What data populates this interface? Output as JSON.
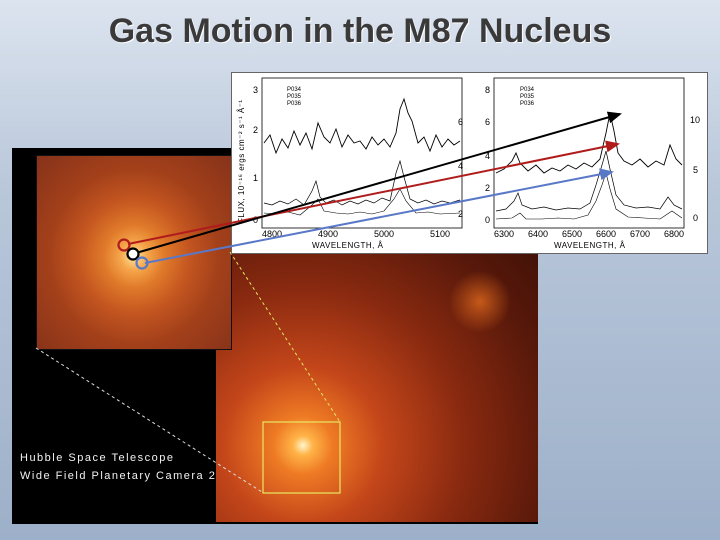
{
  "slide": {
    "title": "Gas Motion in the M87 Nucleus"
  },
  "image_panel": {
    "label_line1": "Hubble Space Telescope",
    "label_line2": "Wide Field Planetary Camera 2"
  },
  "spectra": {
    "y_axis_label": "FLUX, 10⁻¹⁶ ergs cm⁻² s⁻¹ Å⁻¹",
    "left_panel": {
      "x_label": "WAVELENGTH, Å",
      "x_ticks": [
        "4800",
        "4900",
        "5000",
        "5100"
      ],
      "y_ticks_left": [
        "0",
        "1",
        "2",
        "3"
      ],
      "y_ticks_right": [
        "2",
        "4",
        "6"
      ],
      "legend": [
        "P034",
        "P035",
        "P036"
      ]
    },
    "right_panel": {
      "x_label": "WAVELENGTH, Å",
      "x_ticks": [
        "6300",
        "6400",
        "6500",
        "6600",
        "6700",
        "6800"
      ],
      "y_ticks_left": [
        "0",
        "2",
        "4",
        "6",
        "8"
      ],
      "y_ticks_right": [
        "0",
        "5",
        "10"
      ],
      "legend": [
        "P034",
        "P035",
        "P036"
      ]
    }
  },
  "markers": {
    "colors": [
      "#b01c1c",
      "#000000",
      "#5a78c8"
    ]
  }
}
